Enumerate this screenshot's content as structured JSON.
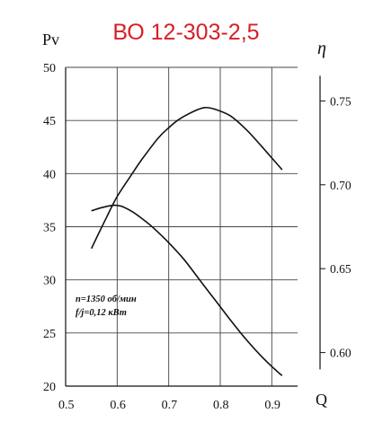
{
  "chart_data": {
    "type": "line",
    "title": "ВО 12-303-2,5",
    "xlabel": "Q",
    "ylabel_left": "Pv",
    "ylabel_right": "η",
    "xlim": [
      0.5,
      0.95
    ],
    "xticks": [
      0.5,
      0.6,
      0.7,
      0.8,
      0.9
    ],
    "xtick_labels": [
      "0.5",
      "0.6",
      "0.7",
      "0.8",
      "0.9"
    ],
    "ylim_left": [
      20,
      50
    ],
    "yticks_left": [
      20,
      25,
      30,
      35,
      40,
      45,
      50
    ],
    "ytick_labels_left": [
      "20",
      "25",
      "30",
      "35",
      "40",
      "45",
      "50"
    ],
    "ylim_right": [
      0.58,
      0.77
    ],
    "yticks_right": [
      0.6,
      0.65,
      0.7,
      0.75
    ],
    "ytick_labels_right": [
      "0.60",
      "0.65",
      "0.70",
      "0.75"
    ],
    "grid": true,
    "annotation": [
      "n=1350 об/мин",
      "f/j=0,12  кВт"
    ],
    "series": [
      {
        "axis": "right",
        "x": [
          0.55,
          0.58,
          0.6,
          0.63,
          0.65,
          0.68,
          0.7,
          0.72,
          0.75,
          0.77,
          0.79,
          0.82,
          0.85,
          0.88,
          0.9,
          0.92
        ],
        "y": [
          0.662,
          0.681,
          0.693,
          0.707,
          0.716,
          0.728,
          0.734,
          0.739,
          0.744,
          0.746,
          0.745,
          0.741,
          0.733,
          0.723,
          0.716,
          0.709
        ]
      },
      {
        "axis": "left",
        "x": [
          0.55,
          0.57,
          0.59,
          0.6,
          0.61,
          0.63,
          0.65,
          0.67,
          0.7,
          0.73,
          0.76,
          0.79,
          0.82,
          0.85,
          0.88,
          0.91,
          0.92
        ],
        "y": [
          36.5,
          36.8,
          37.0,
          37.0,
          36.9,
          36.4,
          35.7,
          34.9,
          33.5,
          31.9,
          30.0,
          28.1,
          26.2,
          24.4,
          22.8,
          21.4,
          21.0
        ]
      }
    ]
  }
}
